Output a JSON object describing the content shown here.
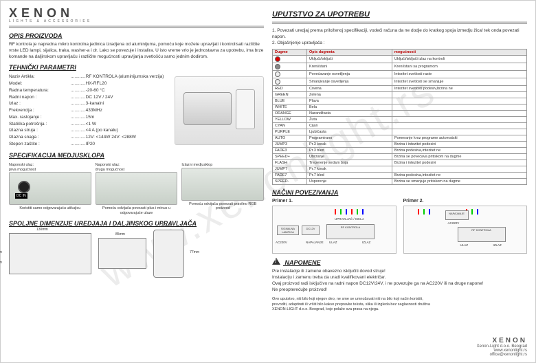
{
  "brand": {
    "name": "XENON",
    "tagline": "LIGHTS & ACCESSORIES"
  },
  "watermark": "www.xenonlight.rs",
  "left": {
    "opis_title": "OPIS PROIZVODA",
    "opis_text": "RF kontrola je napredna mikro kontrolna jedinica izradjena od aluminijuma, pomoću koje možete upravljati i kontrolisati različite vrste LED lampi, sijalica, traka, washer-a i dr. Lako se povezuje i instalira. U isto vreme vrlo je jednostavna za upotrebu, ima brze komande na daljinskom upravljaču i različite mogućnosti upravljanja svetlošću samo jednim dodirom.",
    "tehnicki_title": "TEHNIČKI PARAMETRI",
    "params": [
      {
        "k": "Naziv Artikla:",
        "v": "RF KONTROLA (aluminijumska verzija)"
      },
      {
        "k": "Model:",
        "v": "HX-RFL20"
      },
      {
        "k": "Radna temperatura:",
        "v": "-20-60 °C"
      },
      {
        "k": "Radni napon :",
        "v": "DC 12V / 24V"
      },
      {
        "k": "Izlaz :",
        "v": "3-kanalni"
      },
      {
        "k": "Frekvencija :",
        "v": "433MHz"
      },
      {
        "k": "Max. rastojanje :",
        "v": "15m"
      },
      {
        "k": "Statička potrošnja :",
        "v": "<1 W"
      },
      {
        "k": "Izlazna struja :",
        "v": "<4 A (po kanalu)"
      },
      {
        "k": "Izlazna snaga :",
        "v": "12V: <144W    24V: <288W"
      },
      {
        "k": "Stepen zaštite :",
        "v": "IP20"
      }
    ],
    "spec_title": "SPECIFIKACIJA MEDJUSKLOPA",
    "spec_items": [
      {
        "head": "Naponski ulaz:\nprva mogućnost",
        "foot": "Koristiti samo odgovarajuću utikujicu"
      },
      {
        "head": "Naponski ulaz:\ndruga mogućnost",
        "foot": "Pomoću odvijača povezati plus i minus u odgovarajuće ulaze"
      },
      {
        "head": "Izlazni medjusklop",
        "foot": "Pomoću odvijača povezati pravilno RGB proizvod"
      }
    ],
    "dim_title": "SPOLJNE DIMENZIJE UREDJAJA I DALJINSKOG UPRAVLJAČA",
    "dims": {
      "w1": "130mm",
      "h1": "64mm",
      "d1": "30mm",
      "w2": "85mm",
      "h2": "52mm",
      "wr": "40mm",
      "hr": "77mm"
    }
  },
  "right": {
    "uputstvo_title": "UPUTSTVO ZA UPOTREBU",
    "uputstvo_steps": "1. Povezati uredjaj prema priloženoj specifikaciji, vodeći računa da ne dodje do kratkog spoja izmedju žica! tek onda povezati napon.\n2. Objašnjenje upravljača :",
    "table_headers": [
      "Dugme",
      "Opis dugmeta",
      "mogućnosti"
    ],
    "table_rows": [
      {
        "c": "#d00",
        "d": "Uključi/isključi",
        "m": "Uključi/isključi izlaz na kontroli"
      },
      {
        "c": "#888",
        "d": "Kreni/stani",
        "m": "Kreni/stani sa programom"
      },
      {
        "c": "#eee",
        "d": "Povećavanje osvetljenja",
        "m": "Intezitet svetlosti raste"
      },
      {
        "c": "#eee",
        "d": "Smanjivanje osvetljenja",
        "m": "Intezitet svetlosti se smanjuje"
      },
      {
        "t": "RED",
        "d": "Crvena",
        "m": "Intezitet svetlosti podesiv,brzina ne"
      },
      {
        "t": "GREEN",
        "d": "Zelena",
        "m": ""
      },
      {
        "t": "BLUE",
        "d": "Plava",
        "m": ""
      },
      {
        "t": "WHITE",
        "d": "Bela",
        "m": ""
      },
      {
        "t": "ORANGE",
        "d": "Narandžasta",
        "m": ""
      },
      {
        "t": "YELLOW",
        "d": "Žuta",
        "m": ""
      },
      {
        "t": "CYAN",
        "d": "Cijan",
        "m": ""
      },
      {
        "t": "PURPLE",
        "d": "Ljubičasta",
        "m": ""
      },
      {
        "t": "AUTO",
        "d": "Programirano",
        "m": "Pomeranje kroz programe automatski"
      },
      {
        "t": "JUMP3",
        "d": "Pr.3 korak",
        "m": "Brzina i intezitet podesivi"
      },
      {
        "t": "FADE3",
        "d": "Pr.3 bled",
        "m": "Brzina podesiva,intezitet ne"
      },
      {
        "t": "SPEED+",
        "d": "Ubrzanje",
        "m": "Brzina se povećava pritiskom na dugme"
      },
      {
        "t": "FLASH",
        "d": "Treperenje sedam boja",
        "m": "Brzina i intezitet podesivi"
      },
      {
        "t": "JUMP7",
        "d": "Pr.7 korak",
        "m": ""
      },
      {
        "t": "FADE7",
        "d": "Pr.7 bled",
        "m": "Brzina podesiva,intezitet ne"
      },
      {
        "t": "SPEED-",
        "d": "Usporenje",
        "m": "Brzina se smanjuje pritiskom na dugme"
      }
    ],
    "nacini_title": "NAČINI POVEZIVANJA",
    "primer1": "Primer 1.",
    "primer2": "Primer 2.",
    "diag_labels": {
      "sig": "SIGNALNA LAMPICA",
      "nap": "NAPAJANJE",
      "ul": "ULAZ",
      "iz": "IZLAZ",
      "dc": "DC12V",
      "rf": "RF KONTROLA",
      "up": "UPRAVLJAČ / ISKLJ.",
      "ac": "AC220V"
    },
    "napomene_title": "NAPOMENE",
    "napomene_text": "Pre instalacije ili zamene obavezno isključiti dovod struje!\nInstalaciju i zamenu treba da uradi kvalifikovani električar.\nOvaj proizvod radi isključivo na radni napon DC12V/24V, i ne povezujte ga na AC220V ili na druge napone!\nNe preopterećujte proizvod!",
    "legal": "Ovo uputstvo, niti bilo koji njegov deo, ne sme se umnožavati niti na bilo koji način koristiti, prevoditi, adaptirati ili vršiti bilo kakve prepravke teksta, slika ili izgleda bez saglasnosti društva XENON-LIGHT d.o.o. Beograd, koje polaže sva prava na njega."
  },
  "footer": {
    "company": "Xenon-Light d.o.o. Beograd",
    "site": "www.xenonlight.rs",
    "email": "office@xenonlight.rs"
  }
}
